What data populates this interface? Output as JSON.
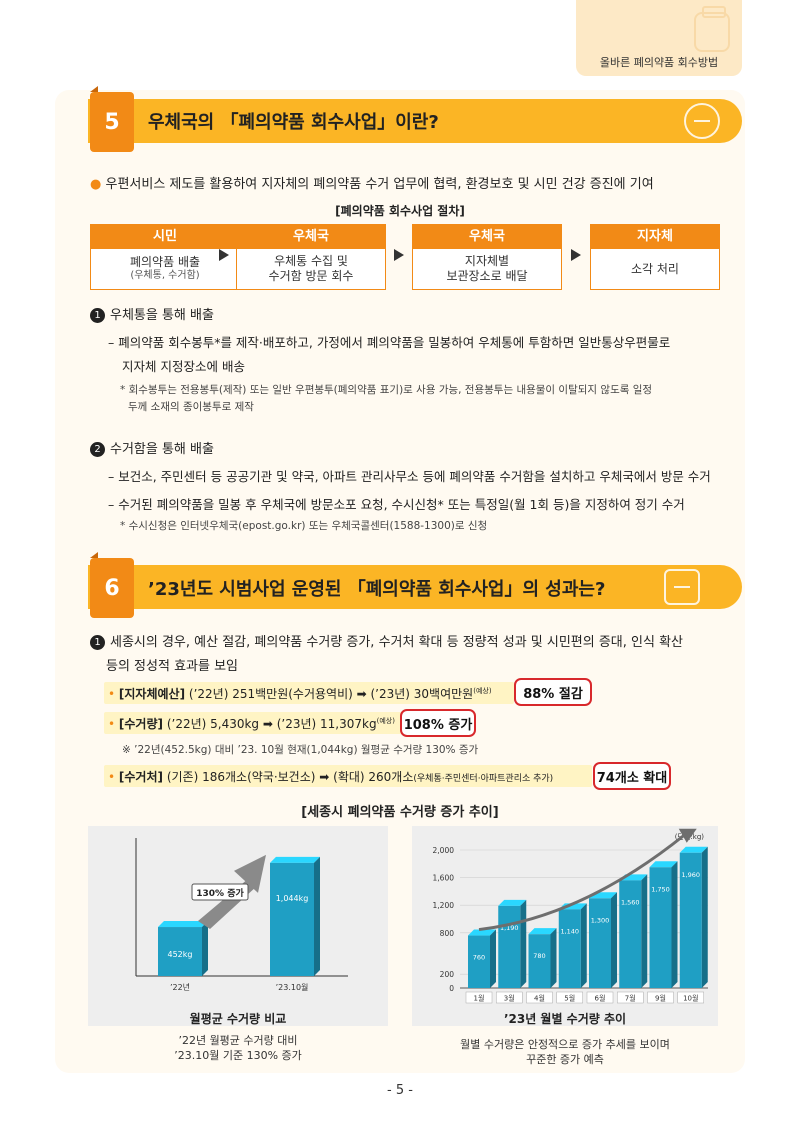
{
  "header": {
    "tab_label": "올바른 폐의약품 회수방법"
  },
  "section5": {
    "number": "5",
    "title": "우체국의 「폐의약품 회수사업」이란?",
    "intro": "우편서비스 제도를 활용하여 지자체의 폐의약품 수거 업무에 협력, 환경보호 및 시민 건강 증진에 기여",
    "process_title": "[폐의약품 회수사업 절차]",
    "process": [
      {
        "head": "시민",
        "line1": "폐의약품 배출",
        "line2": "(우체통, 수거함)"
      },
      {
        "head": "우체국",
        "line1": "우체통 수집 및",
        "line2": "수거함 방문 회수"
      },
      {
        "head": "우체국",
        "line1": "지자체별",
        "line2": "보관장소로 배달"
      },
      {
        "head": "지자체",
        "line1": "소각 처리",
        "line2": ""
      }
    ],
    "item1_num": "1",
    "item1_title": "우체통을 통해 배출",
    "item1_line1": "– 폐의약품 회수봉투*를 제작·배포하고, 가정에서 폐의약품을 밀봉하여 우체통에 투함하면 일반통상우편물로",
    "item1_line2": "지자체 지정장소에 배송",
    "item1_note1": "* 회수봉투는 전용봉투(제작) 또는 일반 우편봉투(폐의약품 표기)로 사용 가능, 전용봉투는 내용물이 이탈되지 않도록 일정",
    "item1_note2": "두께 소재의 종이봉투로 제작",
    "item2_num": "2",
    "item2_title": "수거함을 통해 배출",
    "item2_line1": "– 보건소, 주민센터 등 공공기관 및 약국, 아파트 관리사무소 등에 폐의약품 수거함을 설치하고 우체국에서 방문 수거",
    "item2_line2": "– 수거된 폐의약품을 밀봉 후 우체국에 방문소포 요청, 수시신청* 또는 특정일(월 1회 등)을 지정하여 정기 수거",
    "item2_note": "* 수시신청은 인터넷우체국(epost.go.kr) 또는 우체국콜센터(1588-1300)로 신청"
  },
  "section6": {
    "number": "6",
    "title": "’23년도 시범사업 운영된 「폐의약품 회수사업」의 성과는?",
    "item1_num": "1",
    "item1_line1": "세종시의 경우, 예산 절감, 폐의약품 수거량 증가, 수거처 확대 등 정량적 성과 및 시민편의 증대, 인식 확산",
    "item1_line2": "등의 정성적 효과를 보임",
    "row1_label": "[지자체예산]",
    "row1_text": "(’22년) 251백만원(수거용역비) ➡ (’23년) 30백여만원",
    "row1_sup": "(예상)",
    "row1_badge": "88% 절감",
    "row2_label": "[수거량]",
    "row2_text": "(’22년) 5,430kg ➡ (’23년) 11,307kg",
    "row2_sup": "(예상)",
    "row2_badge": "108% 증가",
    "row2_note": "※ ’22년(452.5kg) 대비 ’23. 10월 현재(1,044kg) 월평균 수거량 130% 증가",
    "row3_label": "[수거처]",
    "row3_text": "(기존) 186개소(약국·보건소) ➡ (확대) 260개소",
    "row3_small": "(우체통·주민센터·아파트관리소 추가)",
    "row3_badge": "74개소 확대",
    "chart_section_title": "[세종시 폐의약품 수거량 증가 추이]",
    "left_caption": "월평균 수거량 비교",
    "left_note1": "’22년 월평균 수거량 대비",
    "left_note2": "’23.10월 기준 130% 증가",
    "left_callout": "130% 증가",
    "right_caption": "’23년 월별 수거량 추이",
    "right_note1": "월별 수거량은 안정적으로 증가 추세를 보이며",
    "right_note2": "꾸준한 증가 예측",
    "unit": "(단위:kg)"
  },
  "chart_data": [
    {
      "type": "bar",
      "title": "월평균 수거량 비교",
      "categories": [
        "’22년",
        "’23.10월"
      ],
      "values": [
        452,
        1044
      ],
      "value_labels": [
        "452kg",
        "1,044kg"
      ],
      "ylim": [
        0,
        1200
      ],
      "color": "#1f9fc4"
    },
    {
      "type": "bar",
      "title": "’23년 월별 수거량 추이",
      "unit": "(단위:kg)",
      "categories": [
        "1월",
        "3월",
        "4월",
        "5월",
        "6월",
        "7월",
        "9월",
        "10월"
      ],
      "values": [
        760,
        1190,
        780,
        1140,
        1300,
        1560,
        1750,
        1960
      ],
      "value_labels": [
        "760",
        "1,190",
        "780",
        "1,140",
        "1,300",
        "1,560",
        "1,750",
        "1,960"
      ],
      "yticks": [
        "0",
        "200",
        "800",
        "1,200",
        "1,600",
        "2,000"
      ],
      "ytick_values": [
        0,
        200,
        800,
        1200,
        1600,
        2000
      ],
      "ylim": [
        0,
        2000
      ],
      "color": "#1f9fc4"
    }
  ],
  "footer": {
    "page": "- 5 -"
  }
}
